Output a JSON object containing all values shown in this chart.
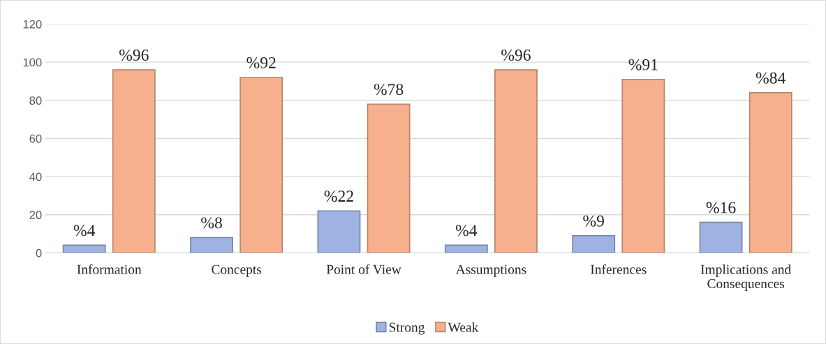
{
  "chart_data": {
    "type": "bar",
    "categories": [
      "Information",
      "Concepts",
      "Point of View",
      "Assumptions",
      "Inferences",
      "Implications and\nConsequences"
    ],
    "series": [
      {
        "name": "Strong",
        "color": "#9fb2e2",
        "values": [
          4,
          8,
          22,
          4,
          9,
          16
        ],
        "value_labels": [
          "%4",
          "%8",
          "%22",
          "%4",
          "%9",
          "%16"
        ]
      },
      {
        "name": "Weak",
        "color": "#f6b08e",
        "values": [
          96,
          92,
          78,
          96,
          91,
          84
        ],
        "value_labels": [
          "%96",
          "%92",
          "%78",
          "%96",
          "%91",
          "%84"
        ]
      }
    ],
    "ylim": [
      0,
      120
    ],
    "yticks": [
      0,
      20,
      40,
      60,
      80,
      100,
      120
    ],
    "grid": "y",
    "legend": "bottom"
  }
}
